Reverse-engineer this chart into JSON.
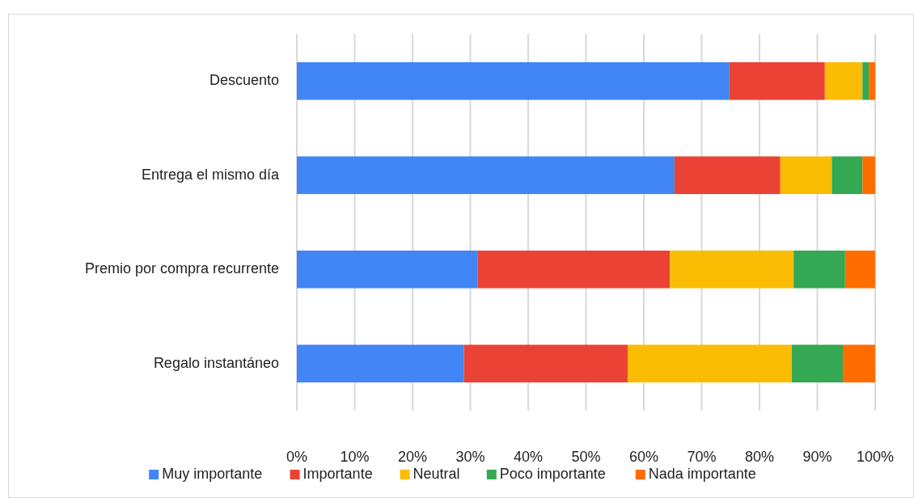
{
  "chart_data": {
    "type": "bar",
    "orientation": "horizontal",
    "stacked": true,
    "categories": [
      "Descuento",
      "Entrega el mismo día",
      "Premio por compra recurrente",
      "Regalo instantáneo"
    ],
    "series": [
      {
        "name": "Muy importante",
        "color": "#4285f4",
        "values": [
          74.8,
          65.3,
          31.3,
          28.9
        ]
      },
      {
        "name": "Importante",
        "color": "#ea4335",
        "values": [
          16.5,
          18.3,
          33.2,
          28.3
        ]
      },
      {
        "name": "Neutral",
        "color": "#fbbc04",
        "values": [
          6.5,
          8.9,
          21.4,
          28.4
        ]
      },
      {
        "name": "Poco importante",
        "color": "#34a853",
        "values": [
          1.1,
          5.3,
          8.9,
          8.8
        ]
      },
      {
        "name": "Nada importante",
        "color": "#ff6d01",
        "values": [
          1.1,
          2.2,
          5.2,
          5.6
        ]
      }
    ],
    "xlim": [
      0,
      100
    ],
    "xticks": [
      {
        "value": 0,
        "label": "0%"
      },
      {
        "value": 10,
        "label": "10%"
      },
      {
        "value": 20,
        "label": "20%"
      },
      {
        "value": 30,
        "label": "30%"
      },
      {
        "value": 40,
        "label": "40%"
      },
      {
        "value": 50,
        "label": "50%"
      },
      {
        "value": 60,
        "label": "60%"
      },
      {
        "value": 70,
        "label": "70%"
      },
      {
        "value": 80,
        "label": "80%"
      },
      {
        "value": 90,
        "label": "90%"
      },
      {
        "value": 100,
        "label": "100%"
      }
    ],
    "grid": "x",
    "legend": "bottom"
  }
}
